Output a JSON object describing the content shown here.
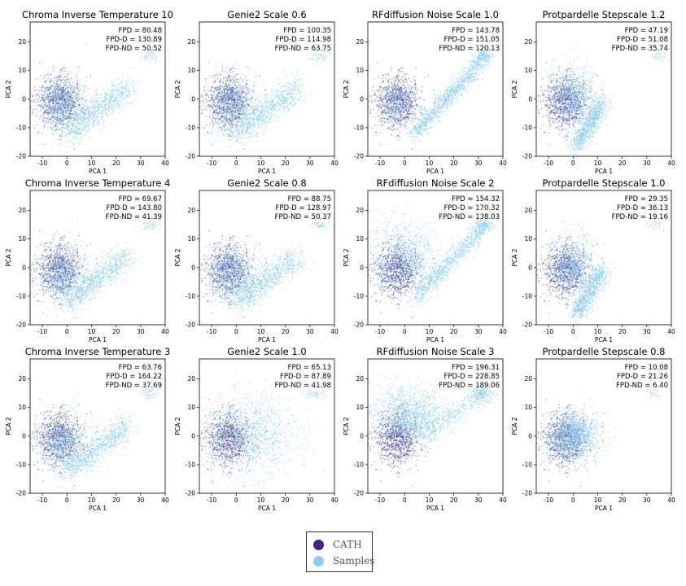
{
  "colors": {
    "cath": "#3a2a86",
    "samples": "#8ccbec"
  },
  "legend": {
    "cath_label": "CATH",
    "samples_label": "Samples"
  },
  "chart_data": [
    {
      "type": "scatter",
      "title": "Chroma Inverse Temperature 10",
      "xlabel": "PCA 1",
      "ylabel": "PCA 2",
      "xlim": [
        -15,
        40
      ],
      "ylim": [
        -20,
        27
      ],
      "xticks": [
        -10,
        0,
        10,
        20,
        30,
        40
      ],
      "yticks": [
        -20,
        -10,
        0,
        10,
        20
      ],
      "stats": [
        "FPD = 80.48",
        "FPD-D = 130.89",
        "FPD-ND = 50.52"
      ],
      "samples_shape": "wedge"
    },
    {
      "type": "scatter",
      "title": "Genie2 Scale 0.6",
      "xlabel": "PCA 1",
      "ylabel": "PCA 2",
      "xlim": [
        -15,
        40
      ],
      "ylim": [
        -20,
        27
      ],
      "xticks": [
        -10,
        0,
        10,
        20,
        30,
        40
      ],
      "yticks": [
        -20,
        -10,
        0,
        10,
        20
      ],
      "stats": [
        "FPD = 100.35",
        "FPD-D = 114.98",
        "FPD-ND = 63.75"
      ],
      "samples_shape": "wedge"
    },
    {
      "type": "scatter",
      "title": "RFdiffusion Noise Scale 1.0",
      "xlabel": "PCA 1",
      "ylabel": "PCA 2",
      "xlim": [
        -15,
        40
      ],
      "ylim": [
        -20,
        27
      ],
      "xticks": [
        -10,
        0,
        10,
        20,
        30,
        40
      ],
      "yticks": [
        -20,
        -10,
        0,
        10,
        20
      ],
      "stats": [
        "FPD = 143.78",
        "FPD-D = 151.05",
        "FPD-ND = 120.13"
      ],
      "samples_shape": "streak"
    },
    {
      "type": "scatter",
      "title": "Protpardelle Stepscale 1.2",
      "xlabel": "PCA 1",
      "ylabel": "PCA 2",
      "xlim": [
        -15,
        40
      ],
      "ylim": [
        -20,
        27
      ],
      "xticks": [
        -10,
        0,
        10,
        20,
        30,
        40
      ],
      "yticks": [
        -20,
        -10,
        0,
        10,
        20
      ],
      "stats": [
        "FPD = 47.19",
        "FPD-D = 51.08",
        "FPD-ND = 35.74"
      ],
      "samples_shape": "tail"
    },
    {
      "type": "scatter",
      "title": "Chroma Inverse Temperature 4",
      "xlabel": "PCA 1",
      "ylabel": "PCA 2",
      "xlim": [
        -15,
        40
      ],
      "ylim": [
        -20,
        27
      ],
      "xticks": [
        -10,
        0,
        10,
        20,
        30,
        40
      ],
      "yticks": [
        -20,
        -10,
        0,
        10,
        20
      ],
      "stats": [
        "FPD = 69.67",
        "FPD-D = 143.80",
        "FPD-ND = 41.39"
      ],
      "samples_shape": "wedge"
    },
    {
      "type": "scatter",
      "title": "Genie2 Scale 0.8",
      "xlabel": "PCA 1",
      "ylabel": "PCA 2",
      "xlim": [
        -15,
        40
      ],
      "ylim": [
        -20,
        27
      ],
      "xticks": [
        -10,
        0,
        10,
        20,
        30,
        40
      ],
      "yticks": [
        -20,
        -10,
        0,
        10,
        20
      ],
      "stats": [
        "FPD = 88.75",
        "FPD-D = 128.97",
        "FPD-ND = 50.37"
      ],
      "samples_shape": "wedge"
    },
    {
      "type": "scatter",
      "title": "RFdiffusion Noise Scale 2",
      "xlabel": "PCA 1",
      "ylabel": "PCA 2",
      "xlim": [
        -15,
        40
      ],
      "ylim": [
        -20,
        27
      ],
      "xticks": [
        -10,
        0,
        10,
        20,
        30,
        40
      ],
      "yticks": [
        -20,
        -10,
        0,
        10,
        20
      ],
      "stats": [
        "FPD = 154.32",
        "FPD-D = 170.32",
        "FPD-ND = 138.03"
      ],
      "samples_shape": "cloud"
    },
    {
      "type": "scatter",
      "title": "Protpardelle Stepscale 1.0",
      "xlabel": "PCA 1",
      "ylabel": "PCA 2",
      "xlim": [
        -15,
        40
      ],
      "ylim": [
        -20,
        27
      ],
      "xticks": [
        -10,
        0,
        10,
        20,
        30,
        40
      ],
      "yticks": [
        -20,
        -10,
        0,
        10,
        20
      ],
      "stats": [
        "FPD = 29.35",
        "FPD-D = 36.13",
        "FPD-ND = 19.16"
      ],
      "samples_shape": "tail"
    },
    {
      "type": "scatter",
      "title": "Chroma Inverse Temperature 3",
      "xlabel": "PCA 1",
      "ylabel": "PCA 2",
      "xlim": [
        -15,
        40
      ],
      "ylim": [
        -20,
        27
      ],
      "xticks": [
        -10,
        0,
        10,
        20,
        30,
        40
      ],
      "yticks": [
        -20,
        -10,
        0,
        10,
        20
      ],
      "stats": [
        "FPD = 63.76",
        "FPD-D = 164.22",
        "FPD-ND = 37.69"
      ],
      "samples_shape": "wedge"
    },
    {
      "type": "scatter",
      "title": "Genie2 Scale 1.0",
      "xlabel": "PCA 1",
      "ylabel": "PCA 2",
      "xlim": [
        -15,
        40
      ],
      "ylim": [
        -20,
        27
      ],
      "xticks": [
        -10,
        0,
        10,
        20,
        30,
        40
      ],
      "yticks": [
        -20,
        -10,
        0,
        10,
        20
      ],
      "stats": [
        "FPD = 65.13",
        "FPD-D = 87.89",
        "FPD-ND = 41.98"
      ],
      "samples_shape": "broad"
    },
    {
      "type": "scatter",
      "title": "RFdiffusion Noise Scale 3",
      "xlabel": "PCA 1",
      "ylabel": "PCA 2",
      "xlim": [
        -15,
        40
      ],
      "ylim": [
        -20,
        27
      ],
      "xticks": [
        -10,
        0,
        10,
        20,
        30,
        40
      ],
      "yticks": [
        -20,
        -10,
        0,
        10,
        20
      ],
      "stats": [
        "FPD = 196.31",
        "FPD-D = 228.85",
        "FPD-ND = 189.06"
      ],
      "samples_shape": "highcloud"
    },
    {
      "type": "scatter",
      "title": "Protpardelle Stepscale 0.8",
      "xlabel": "PCA 1",
      "ylabel": "PCA 2",
      "xlim": [
        -15,
        40
      ],
      "ylim": [
        -20,
        27
      ],
      "xticks": [
        -10,
        0,
        10,
        20,
        30,
        40
      ],
      "yticks": [
        -20,
        -10,
        0,
        10,
        20
      ],
      "stats": [
        "FPD = 10.08",
        "FPD-D = 21.26",
        "FPD-ND = 6.40"
      ],
      "samples_shape": "compact"
    }
  ]
}
